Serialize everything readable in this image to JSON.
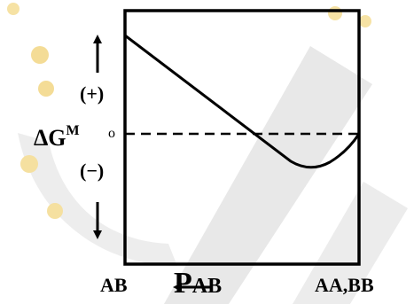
{
  "y_axis": {
    "symbol": "ΔG",
    "superscript": "M",
    "positive": "(+)",
    "negative": "(−)",
    "zero": "o"
  },
  "x_axis": {
    "left": "AB",
    "right": "AA,BB",
    "arrow_label": "P",
    "arrow_label_sub": "AB"
  },
  "colors": {
    "line": "#000000",
    "watermark_grey": "#e7e7e7",
    "watermark_gold": "#f7e3a6"
  }
}
